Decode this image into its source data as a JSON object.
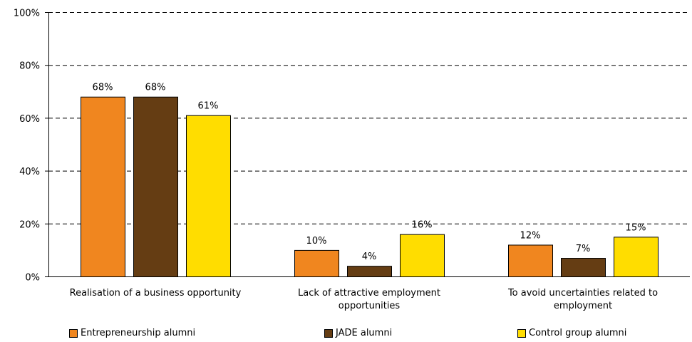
{
  "chart_data": {
    "type": "bar",
    "categories": [
      "Realisation of a business opportunity",
      "Lack of attractive employment opportunities",
      "To avoid uncertainties related to employment"
    ],
    "category_lines": [
      [
        "Realisation of a business opportunity"
      ],
      [
        "Lack of attractive employment",
        "opportunities"
      ],
      [
        "To avoid uncertainties related to",
        "employment"
      ]
    ],
    "series": [
      {
        "name": "Entrepreneurship alumni",
        "color": "#F0861F",
        "values": [
          68,
          10,
          12
        ],
        "labels": [
          "68%",
          "10%",
          "12%"
        ]
      },
      {
        "name": "JADE alumni",
        "color": "#653D13",
        "values": [
          68,
          4,
          7
        ],
        "labels": [
          "68%",
          "4%",
          "7%"
        ]
      },
      {
        "name": "Control group alumni",
        "color": "#FFDD00",
        "values": [
          61,
          16,
          15
        ],
        "labels": [
          "61%",
          "16%",
          "15%"
        ]
      }
    ],
    "ylim": [
      0,
      100
    ],
    "yticks": [
      0,
      20,
      40,
      60,
      80,
      100
    ],
    "ytick_labels": [
      "0%",
      "20%",
      "40%",
      "60%",
      "80%",
      "100%"
    ],
    "grid": "dashed horizontal",
    "legend_position": "bottom",
    "title": "",
    "xlabel": "",
    "ylabel": ""
  }
}
